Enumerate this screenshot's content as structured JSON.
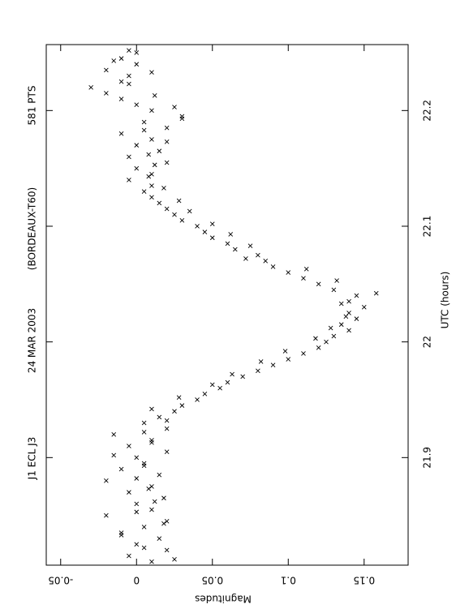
{
  "chart_data": {
    "type": "scatter",
    "annotations": [
      "J1 ECL J3",
      "24 MAR 2003",
      "(BORDEAUX-T60)",
      "581 PTS"
    ],
    "x_label": "UTC (hours)",
    "y_label": "Magnitudes",
    "xlim": [
      21.807,
      22.257
    ],
    "xticks": [
      21.9,
      22,
      22.1,
      22.2
    ],
    "ylim": [
      -0.0595,
      0.179
    ],
    "yticks": [
      -0.05,
      0,
      0.05,
      0.1,
      0.15
    ],
    "color": "#000000",
    "x": [
      21.81,
      21.812,
      21.815,
      21.82,
      21.822,
      21.825,
      21.83,
      21.833,
      21.835,
      21.84,
      21.843,
      21.845,
      21.85,
      21.853,
      21.855,
      21.86,
      21.862,
      21.865,
      21.87,
      21.873,
      21.875,
      21.88,
      21.882,
      21.885,
      21.89,
      21.893,
      21.895,
      21.9,
      21.902,
      21.905,
      21.91,
      21.913,
      21.915,
      21.92,
      21.922,
      21.925,
      21.93,
      21.932,
      21.935,
      21.94,
      21.942,
      21.945,
      21.95,
      21.952,
      21.955,
      21.96,
      21.963,
      21.965,
      21.97,
      21.972,
      21.975,
      21.98,
      21.983,
      21.985,
      21.99,
      21.992,
      21.995,
      22.0,
      22.003,
      22.005,
      22.01,
      22.012,
      22.015,
      22.02,
      22.022,
      22.025,
      22.03,
      22.033,
      22.035,
      22.04,
      22.042,
      22.045,
      22.05,
      22.053,
      22.055,
      22.06,
      22.063,
      22.065,
      22.07,
      22.072,
      22.075,
      22.08,
      22.083,
      22.085,
      22.09,
      22.093,
      22.095,
      22.1,
      22.102,
      22.105,
      22.11,
      22.113,
      22.115,
      22.12,
      22.122,
      22.125,
      22.13,
      22.133,
      22.135,
      22.14,
      22.143,
      22.145,
      22.15,
      22.153,
      22.155,
      22.16,
      22.162,
      22.165,
      22.17,
      22.173,
      22.175,
      22.18,
      22.183,
      22.185,
      22.19,
      22.193,
      22.195,
      22.2,
      22.203,
      22.205,
      22.21,
      22.213,
      22.215,
      22.22,
      22.223,
      22.225,
      22.23,
      22.233,
      22.235,
      22.24,
      22.243,
      22.245,
      22.25,
      22.252
    ],
    "values": [
      0.01,
      0.025,
      -0.005,
      0.02,
      0.005,
      0.0,
      0.015,
      -0.01,
      -0.01,
      0.005,
      0.018,
      0.02,
      -0.02,
      0.0,
      0.01,
      0.0,
      0.012,
      0.018,
      -0.005,
      0.008,
      0.01,
      -0.02,
      0.0,
      0.015,
      -0.01,
      0.005,
      0.005,
      0.0,
      -0.015,
      0.02,
      -0.005,
      0.01,
      0.01,
      -0.015,
      0.005,
      0.02,
      0.005,
      0.02,
      0.015,
      0.025,
      0.01,
      0.03,
      0.04,
      0.028,
      0.045,
      0.055,
      0.05,
      0.06,
      0.07,
      0.063,
      0.08,
      0.09,
      0.082,
      0.1,
      0.11,
      0.098,
      0.12,
      0.125,
      0.118,
      0.13,
      0.14,
      0.128,
      0.135,
      0.145,
      0.138,
      0.14,
      0.15,
      0.135,
      0.14,
      0.145,
      0.158,
      0.13,
      0.12,
      0.132,
      0.11,
      0.1,
      0.112,
      0.09,
      0.085,
      0.072,
      0.08,
      0.065,
      0.075,
      0.06,
      0.05,
      0.062,
      0.045,
      0.04,
      0.05,
      0.03,
      0.025,
      0.035,
      0.02,
      0.015,
      0.028,
      0.01,
      0.005,
      0.018,
      0.01,
      -0.005,
      0.008,
      0.01,
      0.0,
      0.012,
      0.02,
      -0.005,
      0.008,
      0.015,
      0.0,
      0.02,
      0.01,
      -0.01,
      0.005,
      0.02,
      0.005,
      0.03,
      0.03,
      0.01,
      0.025,
      0.0,
      -0.01,
      0.012,
      -0.02,
      -0.03,
      -0.005,
      -0.01,
      -0.005,
      0.01,
      -0.02,
      0.0,
      -0.015,
      -0.01,
      0.0,
      -0.005
    ]
  }
}
